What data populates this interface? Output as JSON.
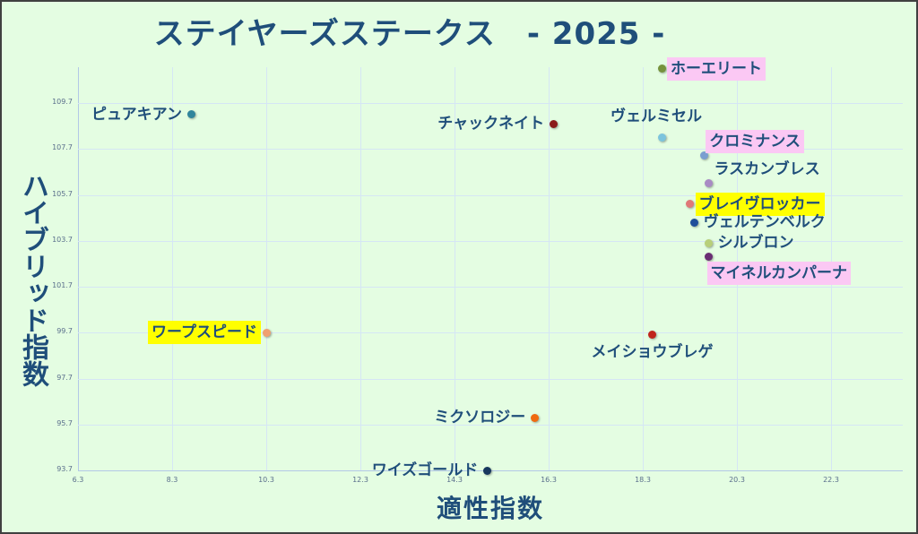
{
  "chart_data": {
    "type": "scatter",
    "title": "ステイヤーズステークス　- 2025 -",
    "xlabel": "適性指数",
    "ylabel": "ハイブリッド指数",
    "xlim": [
      6.3,
      23.8
    ],
    "ylim": [
      93.7,
      111.3
    ],
    "x_ticks": [
      "6.3",
      "8.3",
      "10.3",
      "12.3",
      "14.3",
      "16.3",
      "18.3",
      "20.3",
      "22.3"
    ],
    "y_ticks": [
      "109.7",
      "107.7",
      "105.7",
      "103.7",
      "101.7",
      "99.7",
      "97.7",
      "95.7",
      "93.7"
    ],
    "grid": true,
    "legend": "none",
    "points": [
      {
        "name": "ホーエリート",
        "x": 18.7,
        "y": 111.2,
        "color": "#76923c",
        "highlight": "pink",
        "label_side": "right"
      },
      {
        "name": "ピュアキアン",
        "x": 8.7,
        "y": 109.2,
        "color": "#31859c",
        "highlight": "none",
        "label_side": "left"
      },
      {
        "name": "チャックネイト",
        "x": 16.4,
        "y": 108.8,
        "color": "#8b1a1a",
        "highlight": "none",
        "label_side": "left"
      },
      {
        "name": "ヴェルミセル",
        "x": 18.7,
        "y": 108.2,
        "color": "#7cc4dd",
        "highlight": "none",
        "label_side": "above"
      },
      {
        "name": "クロミナンス",
        "x": 19.6,
        "y": 107.4,
        "color": "#7a9fd0",
        "highlight": "pink",
        "label_side": "right-up"
      },
      {
        "name": "ラスカンブレス",
        "x": 19.7,
        "y": 106.2,
        "color": "#a98bc4",
        "highlight": "none",
        "label_side": "right-up"
      },
      {
        "name": "ブレイヴロッカー",
        "x": 19.3,
        "y": 105.3,
        "color": "#e07878",
        "highlight": "yellow",
        "label_side": "right"
      },
      {
        "name": "ヴェルテンベルク",
        "x": 19.4,
        "y": 104.5,
        "color": "#1f4e9a",
        "highlight": "none",
        "label_side": "right"
      },
      {
        "name": "シルブロン",
        "x": 19.7,
        "y": 103.6,
        "color": "#b8cf7a",
        "highlight": "none",
        "label_side": "right"
      },
      {
        "name": "マイネルカンパーナ",
        "x": 19.7,
        "y": 103.0,
        "color": "#6a2d73",
        "highlight": "pink",
        "label_side": "below"
      },
      {
        "name": "ワープスピード",
        "x": 10.3,
        "y": 99.7,
        "color": "#f0a070",
        "highlight": "yellow",
        "label_side": "left"
      },
      {
        "name": "メイショウブレゲ",
        "x": 18.5,
        "y": 99.6,
        "color": "#c0241c",
        "highlight": "none",
        "label_side": "below"
      },
      {
        "name": "ミクソロジー",
        "x": 16.0,
        "y": 96.0,
        "color": "#f06a10",
        "highlight": "none",
        "label_side": "left"
      },
      {
        "name": "ワイズゴールド",
        "x": 15.0,
        "y": 93.7,
        "color": "#17375e",
        "highlight": "none",
        "label_side": "left"
      }
    ]
  }
}
